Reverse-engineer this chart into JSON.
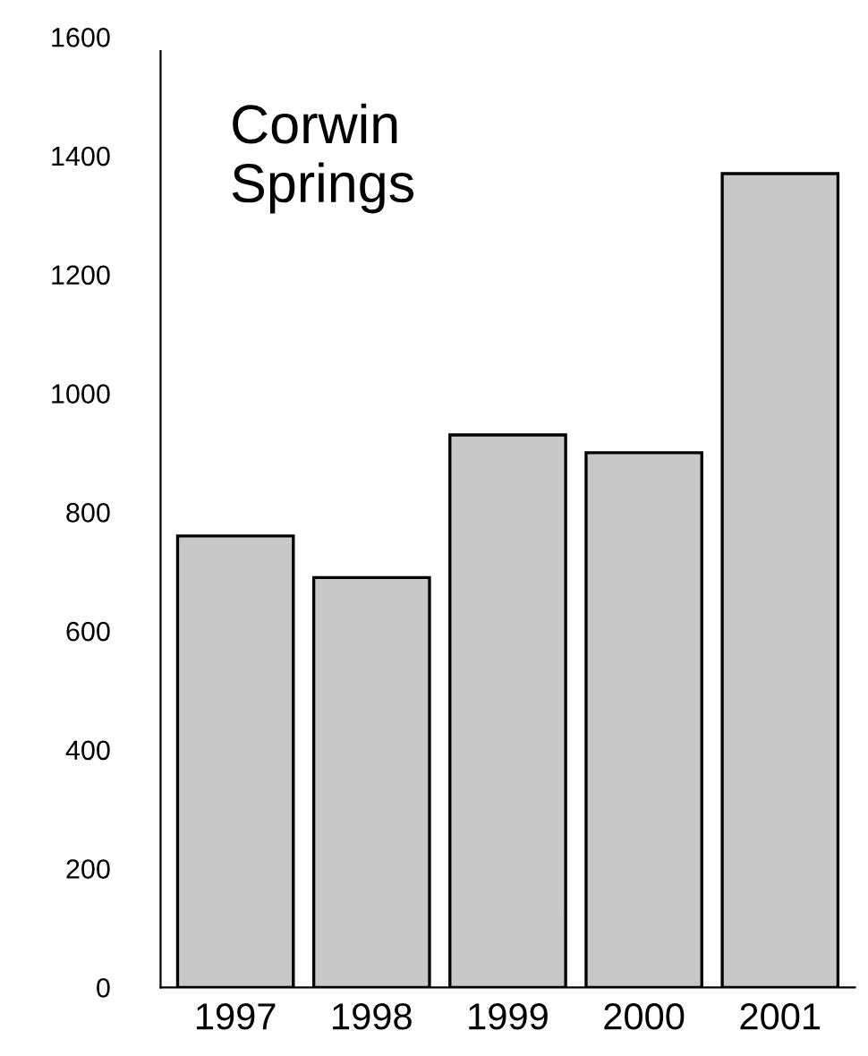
{
  "chart_data": {
    "type": "bar",
    "categories": [
      "1997",
      "1998",
      "1999",
      "2000",
      "2001"
    ],
    "values": [
      760,
      690,
      930,
      900,
      1370
    ],
    "color": "#c8c8c8",
    "ylim": [
      0,
      1600
    ],
    "yticks": [
      0,
      200,
      400,
      600,
      800,
      1000,
      1200,
      1400,
      1600
    ],
    "annotations": [
      "Corwin\nSprings"
    ],
    "grid": false
  }
}
